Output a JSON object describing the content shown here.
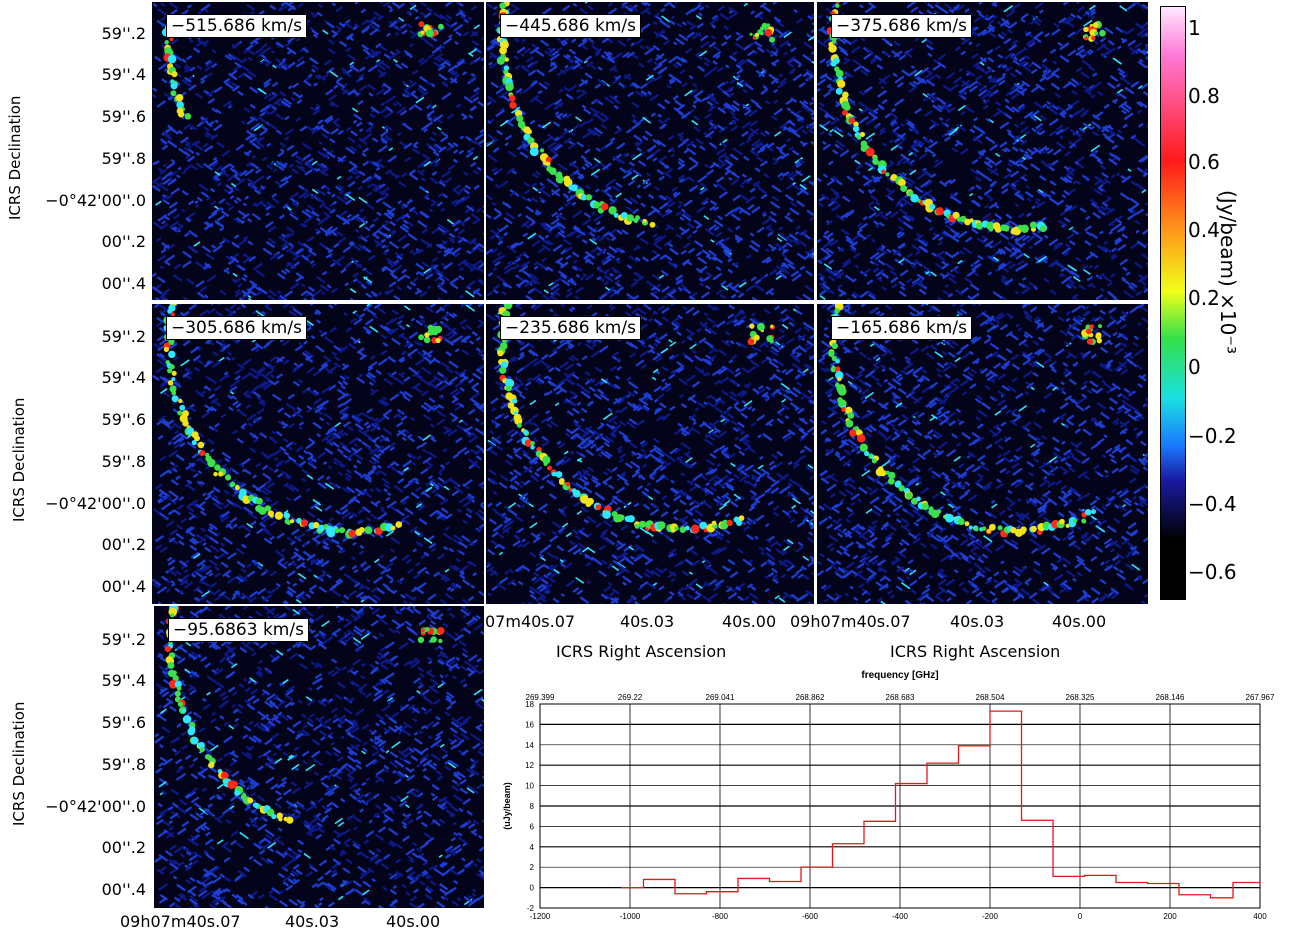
{
  "panels": [
    {
      "velocity": "−515.686 km/s"
    },
    {
      "velocity": "−445.686 km/s"
    },
    {
      "velocity": "−375.686 km/s"
    },
    {
      "velocity": "−305.686 km/s"
    },
    {
      "velocity": "−235.686 km/s"
    },
    {
      "velocity": "−165.686 km/s"
    },
    {
      "velocity": "−95.6863 km/s"
    }
  ],
  "axes": {
    "ylabel": "ICRS Declination",
    "xlabel": "ICRS Right Ascension",
    "yticks": [
      "59''.2",
      "59''.4",
      "59''.6",
      "59''.8",
      "−0°42'00''.0",
      "00''.2",
      "00''.4"
    ],
    "xticks_row2_mid": [
      "07m40s.07",
      "40s.03",
      "40s.00"
    ],
    "xticks_row2_right": [
      "09h07m40s.07",
      "40s.03",
      "40s.00"
    ],
    "xticks_row3": [
      "09h07m40s.07",
      "40s.03",
      "40s.00"
    ]
  },
  "colorbar": {
    "label": "(Jy/beam)  ×10⁻³",
    "ticks": [
      "1",
      "0.8",
      "0.6",
      "0.4",
      "0.2",
      "0",
      "−0.2",
      "−0.4",
      "−0.6"
    ]
  },
  "chart_data": {
    "type": "line",
    "title": "frequency [GHz]",
    "xlabel": "",
    "ylabel": "(uJy/beam)",
    "top_ticks": [
      "269.399",
      "269.22",
      "269.041",
      "268.862",
      "268.683",
      "268.504",
      "268.325",
      "268.146",
      "267.967"
    ],
    "xlim": [
      -1200,
      400
    ],
    "ylim": [
      -2,
      18
    ],
    "xticks": [
      -1200,
      -1000,
      -800,
      -600,
      -400,
      -200,
      0,
      200,
      400
    ],
    "yticks": [
      -2,
      0,
      2,
      4,
      6,
      8,
      10,
      12,
      14,
      16,
      18
    ],
    "step_x": [
      -1020,
      -970,
      -900,
      -830,
      -760,
      -690,
      -620,
      -550,
      -480,
      -410,
      -340,
      -270,
      -200,
      -130,
      -60,
      10,
      80,
      150,
      220,
      290,
      340,
      400
    ],
    "step_y": [
      0,
      0.8,
      -0.6,
      -0.4,
      0.9,
      0.6,
      2.0,
      4.3,
      6.5,
      10.2,
      12.2,
      13.9,
      17.3,
      6.6,
      1.1,
      1.2,
      0.5,
      0.4,
      -0.7,
      -1.0,
      0.5
    ],
    "line_color": "#e8151a"
  },
  "colors": {
    "bg": "#03041a",
    "noise": "#1c3fd8",
    "bright": "#2ee6ff",
    "hot": "#ff2a1a"
  }
}
